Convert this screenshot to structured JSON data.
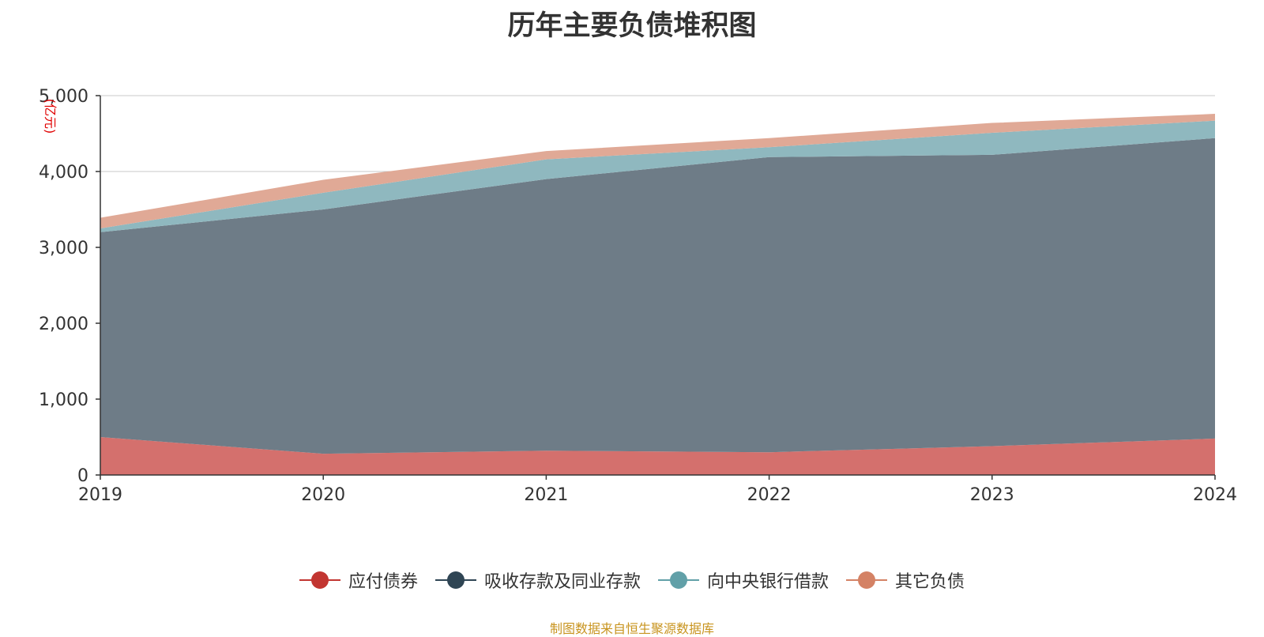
{
  "chart_data": {
    "type": "area",
    "stacked": true,
    "title": "历年主要负债堆积图",
    "ylabel": "(亿元)",
    "xlabel": "",
    "categories": [
      "2019",
      "2020",
      "2021",
      "2022",
      "2023",
      "2024"
    ],
    "ylim": [
      0,
      5000
    ],
    "yticks": [
      0,
      1000,
      2000,
      3000,
      4000,
      5000
    ],
    "ytick_labels": [
      "0",
      "1,000",
      "2,000",
      "3,000",
      "4,000",
      "5,000"
    ],
    "grid": true,
    "legend_position": "bottom",
    "series": [
      {
        "name": "应付债券",
        "color": "#c23531",
        "fill": "#d4706d",
        "values": [
          500,
          280,
          320,
          300,
          380,
          480
        ]
      },
      {
        "name": "吸收存款及同业存款",
        "color": "#2f4554",
        "fill": "#6e7c87",
        "values": [
          2700,
          3220,
          3580,
          3890,
          3840,
          3960
        ]
      },
      {
        "name": "向中央银行借款",
        "color": "#61a0a8",
        "fill": "#8fb8bf",
        "values": [
          50,
          220,
          260,
          130,
          290,
          230
        ]
      },
      {
        "name": "其它负债",
        "color": "#d48265",
        "fill": "#e0a996",
        "values": [
          140,
          170,
          110,
          120,
          130,
          90
        ]
      }
    ]
  },
  "source_note": "制图数据来自恒生聚源数据库"
}
